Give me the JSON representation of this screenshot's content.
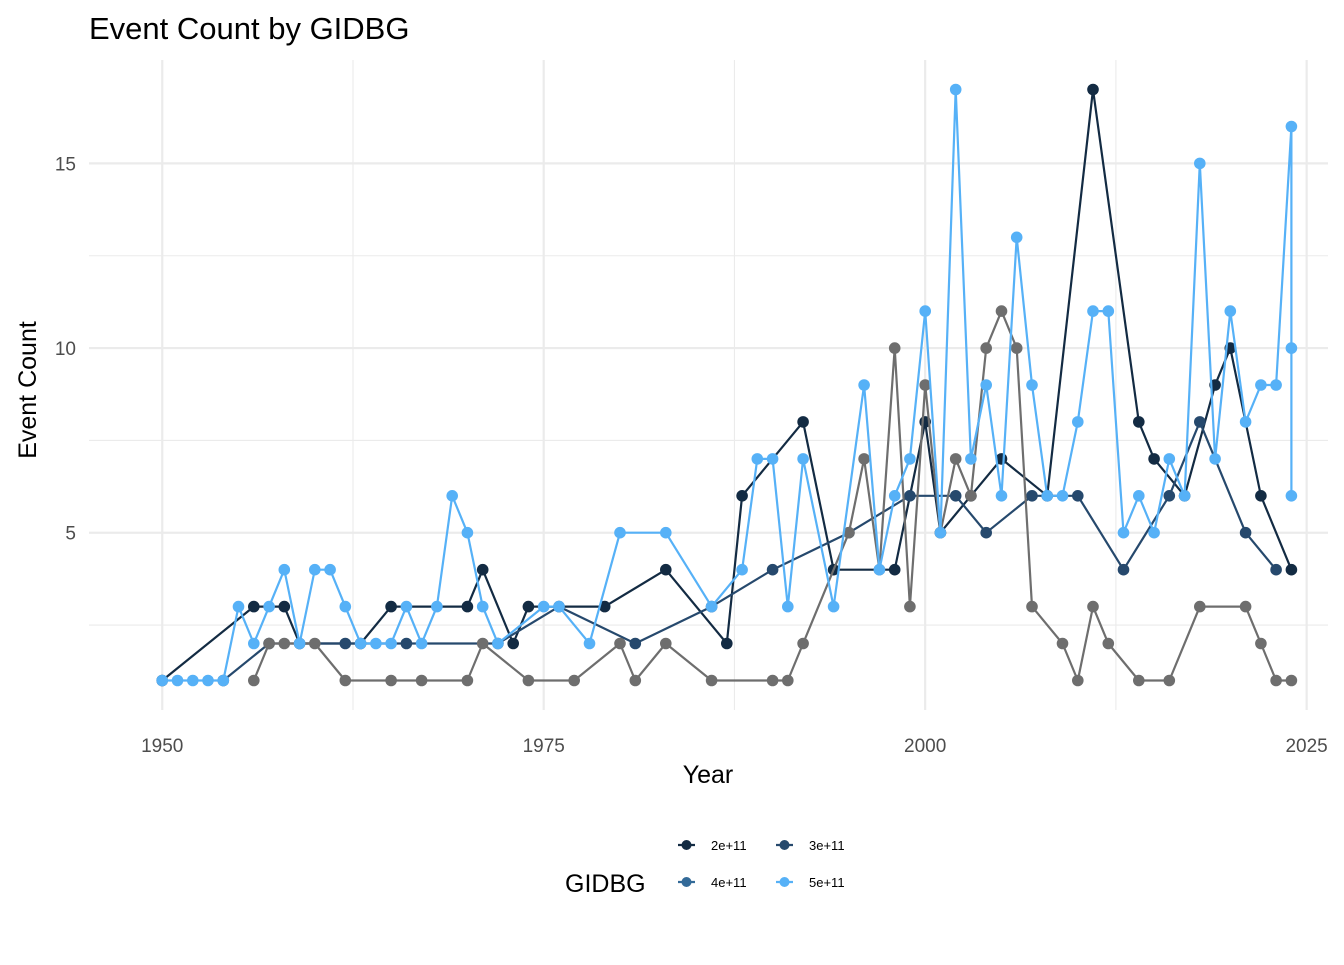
{
  "chart_data": {
    "type": "line",
    "title": "Event Count by GIDBG",
    "xlabel": "Year",
    "ylabel": "Event Count",
    "xlim": [
      1950,
      2024
    ],
    "ylim": [
      1,
      17
    ],
    "x_ticks": [
      "1950",
      "1975",
      "2000",
      "2025"
    ],
    "y_ticks": [
      "5",
      "10",
      "15"
    ],
    "grid": true,
    "legend": {
      "title": "GIDBG",
      "position": "bottom",
      "entries": [
        {
          "label": "2e+11",
          "color": "#132B43"
        },
        {
          "label": "3e+11",
          "color": "#26496D"
        },
        {
          "label": "4e+11",
          "color": "#336A98"
        },
        {
          "label": "5e+11",
          "color": "#56B1F7"
        }
      ]
    },
    "series": [
      {
        "color": "#132B43",
        "points": [
          [
            1950,
            1
          ],
          [
            1956,
            3
          ],
          [
            1958,
            3
          ],
          [
            1959,
            2
          ],
          [
            1963,
            2
          ],
          [
            1965,
            3
          ],
          [
            1970,
            3
          ],
          [
            1971,
            4
          ],
          [
            1973,
            2
          ],
          [
            1974,
            3
          ],
          [
            1979,
            3
          ],
          [
            1983,
            4
          ],
          [
            1987,
            2
          ],
          [
            1988,
            6
          ],
          [
            1992,
            8
          ],
          [
            1994,
            4
          ],
          [
            1998,
            4
          ],
          [
            2000,
            8
          ],
          [
            2001,
            5
          ],
          [
            2003,
            6
          ],
          [
            2005,
            7
          ],
          [
            2008,
            6
          ],
          [
            2011,
            17
          ],
          [
            2014,
            8
          ],
          [
            2015,
            7
          ],
          [
            2017,
            6
          ],
          [
            2019,
            9
          ],
          [
            2020,
            10
          ],
          [
            2022,
            6
          ],
          [
            2024,
            4
          ]
        ]
      },
      {
        "color": "#26496D",
        "points": [
          [
            1954,
            1
          ],
          [
            1957,
            2
          ],
          [
            1962,
            2
          ],
          [
            1966,
            2
          ],
          [
            1972,
            2
          ],
          [
            1976,
            3
          ],
          [
            1981,
            2
          ],
          [
            1986,
            3
          ],
          [
            1990,
            4
          ],
          [
            1995,
            5
          ],
          [
            1999,
            6
          ],
          [
            2002,
            6
          ],
          [
            2004,
            5
          ],
          [
            2007,
            6
          ],
          [
            2010,
            6
          ],
          [
            2013,
            4
          ],
          [
            2016,
            6
          ],
          [
            2018,
            8
          ],
          [
            2021,
            5
          ],
          [
            2023,
            4
          ]
        ]
      },
      {
        "color": "#6E6E6E",
        "points": [
          [
            1956,
            1
          ],
          [
            1957,
            2
          ],
          [
            1958,
            2
          ],
          [
            1960,
            2
          ],
          [
            1962,
            1
          ],
          [
            1965,
            1
          ],
          [
            1967,
            1
          ],
          [
            1970,
            1
          ],
          [
            1971,
            2
          ],
          [
            1974,
            1
          ],
          [
            1977,
            1
          ],
          [
            1980,
            2
          ],
          [
            1981,
            1
          ],
          [
            1983,
            2
          ],
          [
            1986,
            1
          ],
          [
            1990,
            1
          ],
          [
            1991,
            1
          ],
          [
            1992,
            2
          ],
          [
            1995,
            5
          ],
          [
            1996,
            7
          ],
          [
            1997,
            4
          ],
          [
            1998,
            10
          ],
          [
            1999,
            3
          ],
          [
            2000,
            9
          ],
          [
            2001,
            5
          ],
          [
            2002,
            7
          ],
          [
            2003,
            6
          ],
          [
            2004,
            10
          ],
          [
            2005,
            11
          ],
          [
            2006,
            10
          ],
          [
            2007,
            3
          ],
          [
            2009,
            2
          ],
          [
            2010,
            1
          ],
          [
            2011,
            3
          ],
          [
            2012,
            2
          ],
          [
            2014,
            1
          ],
          [
            2016,
            1
          ],
          [
            2018,
            3
          ],
          [
            2021,
            3
          ],
          [
            2022,
            2
          ],
          [
            2023,
            1
          ],
          [
            2024,
            1
          ]
        ]
      },
      {
        "color": "#56B1F7",
        "points": [
          [
            1950,
            1
          ],
          [
            1951,
            1
          ],
          [
            1952,
            1
          ],
          [
            1953,
            1
          ],
          [
            1954,
            1
          ],
          [
            1955,
            3
          ],
          [
            1956,
            2
          ],
          [
            1957,
            3
          ],
          [
            1958,
            4
          ],
          [
            1959,
            2
          ],
          [
            1960,
            4
          ],
          [
            1961,
            4
          ],
          [
            1962,
            3
          ],
          [
            1963,
            2
          ],
          [
            1964,
            2
          ],
          [
            1965,
            2
          ],
          [
            1966,
            3
          ],
          [
            1967,
            2
          ],
          [
            1968,
            3
          ],
          [
            1969,
            6
          ],
          [
            1970,
            5
          ],
          [
            1971,
            3
          ],
          [
            1972,
            2
          ],
          [
            1975,
            3
          ],
          [
            1976,
            3
          ],
          [
            1978,
            2
          ],
          [
            1980,
            5
          ],
          [
            1983,
            5
          ],
          [
            1986,
            3
          ],
          [
            1988,
            4
          ],
          [
            1989,
            7
          ],
          [
            1990,
            7
          ],
          [
            1991,
            3
          ],
          [
            1992,
            7
          ],
          [
            1994,
            3
          ],
          [
            1996,
            9
          ],
          [
            1997,
            4
          ],
          [
            1998,
            6
          ],
          [
            1999,
            7
          ],
          [
            2000,
            11
          ],
          [
            2001,
            5
          ],
          [
            2002,
            17
          ],
          [
            2003,
            7
          ],
          [
            2004,
            9
          ],
          [
            2005,
            6
          ],
          [
            2006,
            13
          ],
          [
            2007,
            9
          ],
          [
            2008,
            6
          ],
          [
            2009,
            6
          ],
          [
            2010,
            8
          ],
          [
            2011,
            11
          ],
          [
            2012,
            11
          ],
          [
            2013,
            5
          ],
          [
            2014,
            6
          ],
          [
            2015,
            5
          ],
          [
            2016,
            7
          ],
          [
            2017,
            6
          ],
          [
            2018,
            15
          ],
          [
            2019,
            7
          ],
          [
            2020,
            11
          ],
          [
            2021,
            8
          ],
          [
            2022,
            9
          ],
          [
            2023,
            9
          ],
          [
            2024,
            16
          ],
          [
            2024,
            10
          ],
          [
            2024,
            6
          ]
        ]
      }
    ]
  }
}
